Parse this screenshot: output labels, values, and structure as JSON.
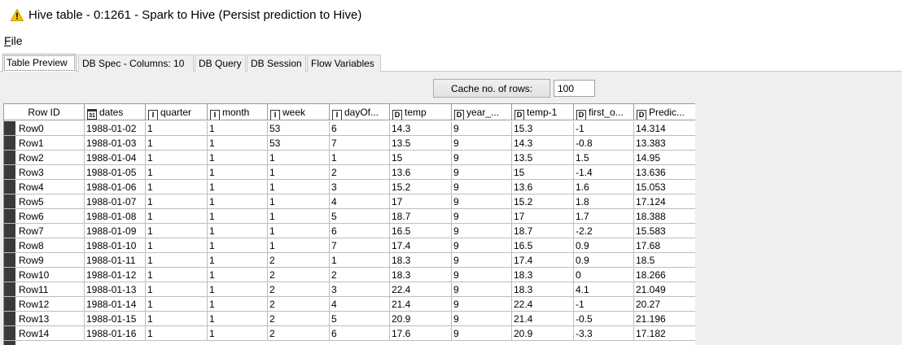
{
  "window": {
    "title": "Hive table - 0:1261 - Spark to Hive (Persist prediction to Hive)",
    "icon": "warning-icon"
  },
  "menu": {
    "file_prefix": "F",
    "file_rest": "ile"
  },
  "tabs": [
    {
      "label": "Table Preview",
      "active": true
    },
    {
      "label": "DB Spec - Columns: 10"
    },
    {
      "label": "DB Query"
    },
    {
      "label": "DB Session"
    },
    {
      "label": "Flow Variables"
    }
  ],
  "cache": {
    "button_label": "Cache no. of rows:",
    "value": "100"
  },
  "table": {
    "columns": [
      {
        "label": "Row ID",
        "type": ""
      },
      {
        "label": "dates",
        "type": "31"
      },
      {
        "label": "quarter",
        "type": "I"
      },
      {
        "label": "month",
        "type": "I"
      },
      {
        "label": "week",
        "type": "I"
      },
      {
        "label": "dayOf...",
        "type": "I"
      },
      {
        "label": "temp",
        "type": "D"
      },
      {
        "label": "year_...",
        "type": "D"
      },
      {
        "label": "temp-1",
        "type": "D"
      },
      {
        "label": "first_o...",
        "type": "D"
      },
      {
        "label": "Predic...",
        "type": "D"
      }
    ],
    "rows": [
      [
        "Row0",
        "1988-01-02",
        "1",
        "1",
        "53",
        "6",
        "14.3",
        "9",
        "15.3",
        "-1",
        "14.314"
      ],
      [
        "Row1",
        "1988-01-03",
        "1",
        "1",
        "53",
        "7",
        "13.5",
        "9",
        "14.3",
        "-0.8",
        "13.383"
      ],
      [
        "Row2",
        "1988-01-04",
        "1",
        "1",
        "1",
        "1",
        "15",
        "9",
        "13.5",
        "1.5",
        "14.95"
      ],
      [
        "Row3",
        "1988-01-05",
        "1",
        "1",
        "1",
        "2",
        "13.6",
        "9",
        "15",
        "-1.4",
        "13.636"
      ],
      [
        "Row4",
        "1988-01-06",
        "1",
        "1",
        "1",
        "3",
        "15.2",
        "9",
        "13.6",
        "1.6",
        "15.053"
      ],
      [
        "Row5",
        "1988-01-07",
        "1",
        "1",
        "1",
        "4",
        "17",
        "9",
        "15.2",
        "1.8",
        "17.124"
      ],
      [
        "Row6",
        "1988-01-08",
        "1",
        "1",
        "1",
        "5",
        "18.7",
        "9",
        "17",
        "1.7",
        "18.388"
      ],
      [
        "Row7",
        "1988-01-09",
        "1",
        "1",
        "1",
        "6",
        "16.5",
        "9",
        "18.7",
        "-2.2",
        "15.583"
      ],
      [
        "Row8",
        "1988-01-10",
        "1",
        "1",
        "1",
        "7",
        "17.4",
        "9",
        "16.5",
        "0.9",
        "17.68"
      ],
      [
        "Row9",
        "1988-01-11",
        "1",
        "1",
        "2",
        "1",
        "18.3",
        "9",
        "17.4",
        "0.9",
        "18.5"
      ],
      [
        "Row10",
        "1988-01-12",
        "1",
        "1",
        "2",
        "2",
        "18.3",
        "9",
        "18.3",
        "0",
        "18.266"
      ],
      [
        "Row11",
        "1988-01-13",
        "1",
        "1",
        "2",
        "3",
        "22.4",
        "9",
        "18.3",
        "4.1",
        "21.049"
      ],
      [
        "Row12",
        "1988-01-14",
        "1",
        "1",
        "2",
        "4",
        "21.4",
        "9",
        "22.4",
        "-1",
        "20.27"
      ],
      [
        "Row13",
        "1988-01-15",
        "1",
        "1",
        "2",
        "5",
        "20.9",
        "9",
        "21.4",
        "-0.5",
        "21.196"
      ],
      [
        "Row14",
        "1988-01-16",
        "1",
        "1",
        "2",
        "6",
        "17.6",
        "9",
        "20.9",
        "-3.3",
        "17.182"
      ]
    ]
  }
}
